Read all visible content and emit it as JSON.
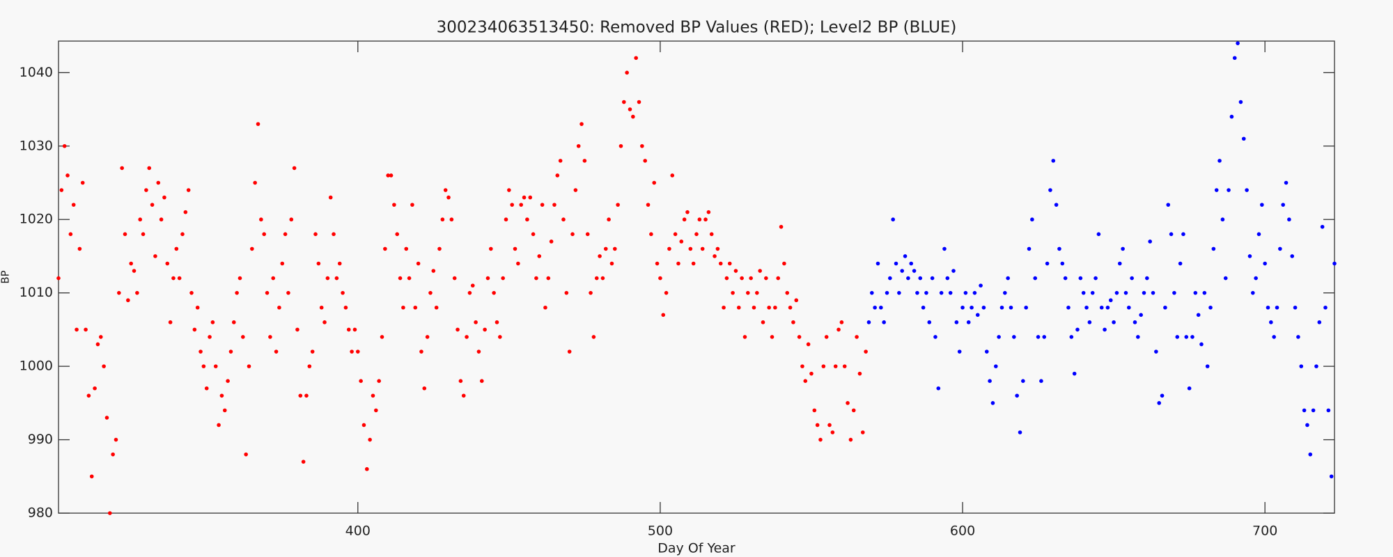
{
  "chart_data": {
    "type": "scatter",
    "title": "300234063513450: Removed BP Values (RED); Level2 BP (BLUE)",
    "xlabel": "Day Of Year",
    "ylabel": "BP",
    "xlim": [
      301,
      723
    ],
    "ylim": [
      980,
      1044.3
    ],
    "xticks": [
      400,
      500,
      600,
      700
    ],
    "yticks": [
      980,
      990,
      1000,
      1010,
      1020,
      1030,
      1040
    ],
    "series": [
      {
        "color": "#ff0000",
        "x": [
          301,
          302,
          303,
          304,
          305,
          306,
          307,
          308,
          309,
          310,
          311,
          312,
          313,
          314,
          315,
          316,
          317,
          318,
          319,
          320,
          321,
          322,
          323,
          324,
          325,
          326,
          327,
          328,
          329,
          330,
          331,
          332,
          333,
          334,
          335,
          336,
          337,
          338,
          339,
          340,
          341,
          342,
          343,
          344,
          345,
          346,
          347,
          348,
          349,
          350,
          351,
          352,
          353,
          354,
          355,
          356,
          357,
          358,
          359,
          360,
          361,
          362,
          363,
          364,
          365,
          366,
          367,
          368,
          369,
          370,
          371,
          372,
          373,
          374,
          375,
          376,
          377,
          378,
          379,
          380,
          381,
          382,
          383,
          384,
          385,
          386,
          387,
          388,
          389,
          390,
          391,
          392,
          393,
          394,
          395,
          396,
          397,
          398,
          399,
          400,
          401,
          402,
          403,
          404,
          405,
          406,
          407,
          408,
          409,
          410,
          411,
          412,
          413,
          414,
          415,
          416,
          417,
          418,
          419,
          420,
          421,
          422,
          423,
          424,
          425,
          426,
          427,
          428,
          429,
          430,
          431,
          432,
          433,
          434,
          435,
          436,
          437,
          438,
          439,
          440,
          441,
          442,
          443,
          444,
          445,
          446,
          447,
          448,
          449,
          450,
          451,
          452,
          453,
          454,
          455,
          456,
          457,
          458,
          459,
          460,
          461,
          462,
          463,
          464,
          465,
          466,
          467,
          468,
          469,
          470,
          471,
          472,
          473,
          474,
          475,
          476,
          477,
          478,
          479,
          480,
          481,
          482,
          483,
          484,
          485,
          486,
          487,
          488,
          489,
          490,
          491,
          492,
          493,
          494,
          495,
          496,
          497,
          498,
          499,
          500,
          501,
          502,
          503,
          504,
          505,
          506,
          507,
          508,
          509,
          510,
          511,
          512,
          513,
          514,
          515,
          516,
          517,
          518,
          519,
          520,
          521,
          522,
          523,
          524,
          525,
          526,
          527,
          528,
          529,
          530,
          531,
          532,
          533,
          534,
          535,
          536,
          537,
          538,
          539,
          540,
          541,
          542,
          543,
          544,
          545,
          546,
          547,
          548,
          549,
          550,
          551,
          552,
          553,
          554,
          555,
          556,
          557,
          558,
          559,
          560,
          561,
          562,
          563,
          564,
          565,
          566,
          567,
          568
        ],
        "values": [
          1012,
          1024,
          1030,
          1026,
          1018,
          1022,
          1005,
          1016,
          1025,
          1005,
          996,
          985,
          997,
          1003,
          1004,
          1000,
          993,
          980,
          988,
          990,
          1010,
          1027,
          1018,
          1009,
          1014,
          1013,
          1010,
          1020,
          1018,
          1024,
          1027,
          1022,
          1015,
          1025,
          1020,
          1023,
          1014,
          1006,
          1012,
          1016,
          1012,
          1018,
          1021,
          1024,
          1010,
          1005,
          1008,
          1002,
          1000,
          997,
          1004,
          1006,
          1000,
          992,
          996,
          994,
          998,
          1002,
          1006,
          1010,
          1012,
          1004,
          988,
          1000,
          1016,
          1025,
          1033,
          1020,
          1018,
          1010,
          1004,
          1012,
          1002,
          1008,
          1014,
          1018,
          1010,
          1020,
          1027,
          1005,
          996,
          987,
          996,
          1000,
          1002,
          1018,
          1014,
          1008,
          1006,
          1012,
          1023,
          1018,
          1012,
          1014,
          1010,
          1008,
          1005,
          1002,
          1005,
          1002,
          998,
          992,
          986,
          990,
          996,
          994,
          998,
          1004,
          1016,
          1026,
          1026,
          1022,
          1018,
          1012,
          1008,
          1016,
          1012,
          1022,
          1008,
          1014,
          1002,
          997,
          1004,
          1010,
          1013,
          1008,
          1016,
          1020,
          1024,
          1023,
          1020,
          1012,
          1005,
          998,
          996,
          1004,
          1010,
          1011,
          1006,
          1002,
          998,
          1005,
          1012,
          1016,
          1010,
          1006,
          1004,
          1012,
          1020,
          1024,
          1022,
          1016,
          1014,
          1022,
          1023,
          1020,
          1023,
          1018,
          1012,
          1015,
          1022,
          1008,
          1012,
          1017,
          1022,
          1026,
          1028,
          1020,
          1010,
          1002,
          1018,
          1024,
          1030,
          1033,
          1028,
          1018,
          1010,
          1004,
          1012,
          1015,
          1012,
          1016,
          1020,
          1014,
          1016,
          1022,
          1030,
          1036,
          1040,
          1035,
          1034,
          1042,
          1036,
          1030,
          1028,
          1022,
          1018,
          1025,
          1014,
          1012,
          1007,
          1010,
          1016,
          1026,
          1018,
          1014,
          1017,
          1020,
          1021,
          1016,
          1014,
          1018,
          1020,
          1016,
          1020,
          1021,
          1018,
          1015,
          1016,
          1014,
          1008,
          1012,
          1014,
          1010,
          1013,
          1008,
          1012,
          1004,
          1010,
          1012,
          1008,
          1010,
          1013,
          1006,
          1012,
          1008,
          1004,
          1008,
          1012,
          1019,
          1014,
          1010,
          1008,
          1006,
          1009,
          1004,
          1000,
          998,
          1003,
          999,
          994,
          992,
          990,
          1000,
          1004,
          992,
          991,
          1000,
          1005,
          1006,
          1000,
          995,
          990,
          994,
          1004,
          999,
          991,
          1002
        ]
      },
      {
        "color": "#0000ff",
        "x": [
          569,
          570,
          571,
          572,
          573,
          574,
          575,
          576,
          577,
          578,
          579,
          580,
          581,
          582,
          583,
          584,
          585,
          586,
          587,
          588,
          589,
          590,
          591,
          592,
          593,
          594,
          595,
          596,
          597,
          598,
          599,
          600,
          601,
          602,
          603,
          604,
          605,
          606,
          607,
          608,
          609,
          610,
          611,
          612,
          613,
          614,
          615,
          616,
          617,
          618,
          619,
          620,
          621,
          622,
          623,
          624,
          625,
          626,
          627,
          628,
          629,
          630,
          631,
          632,
          633,
          634,
          635,
          636,
          637,
          638,
          639,
          640,
          641,
          642,
          643,
          644,
          645,
          646,
          647,
          648,
          649,
          650,
          651,
          652,
          653,
          654,
          655,
          656,
          657,
          658,
          659,
          660,
          661,
          662,
          663,
          664,
          665,
          666,
          667,
          668,
          669,
          670,
          671,
          672,
          673,
          674,
          675,
          676,
          677,
          678,
          679,
          680,
          681,
          682,
          683,
          684,
          685,
          686,
          687,
          688,
          689,
          690,
          691,
          692,
          693,
          694,
          695,
          696,
          697,
          698,
          699,
          700,
          701,
          702,
          703,
          704,
          705,
          706,
          707,
          708,
          709,
          710,
          711,
          712,
          713,
          714,
          715,
          716,
          717,
          718,
          719,
          720,
          721,
          722,
          723
        ],
        "values": [
          1006,
          1010,
          1008,
          1014,
          1008,
          1006,
          1010,
          1012,
          1020,
          1014,
          1010,
          1013,
          1015,
          1012,
          1014,
          1013,
          1010,
          1012,
          1008,
          1010,
          1006,
          1012,
          1004,
          997,
          1010,
          1016,
          1012,
          1010,
          1013,
          1006,
          1002,
          1008,
          1010,
          1006,
          1008,
          1010,
          1007,
          1011,
          1008,
          1002,
          998,
          995,
          1000,
          1004,
          1008,
          1010,
          1012,
          1008,
          1004,
          996,
          991,
          998,
          1008,
          1016,
          1020,
          1012,
          1004,
          998,
          1004,
          1014,
          1024,
          1028,
          1022,
          1016,
          1014,
          1012,
          1008,
          1004,
          999,
          1005,
          1012,
          1010,
          1008,
          1006,
          1010,
          1012,
          1018,
          1008,
          1005,
          1008,
          1009,
          1006,
          1010,
          1014,
          1016,
          1010,
          1008,
          1012,
          1006,
          1004,
          1007,
          1010,
          1012,
          1017,
          1010,
          1002,
          995,
          996,
          1008,
          1022,
          1018,
          1010,
          1004,
          1014,
          1018,
          1004,
          997,
          1004,
          1010,
          1007,
          1003,
          1010,
          1000,
          1008,
          1016,
          1024,
          1028,
          1020,
          1012,
          1024,
          1034,
          1042,
          1044,
          1036,
          1031,
          1024,
          1015,
          1010,
          1012,
          1018,
          1022,
          1014,
          1008,
          1006,
          1004,
          1008,
          1016,
          1022,
          1025,
          1020,
          1015,
          1008,
          1004,
          1000,
          994,
          992,
          988,
          994,
          1000,
          1006,
          1019,
          1008,
          994,
          985,
          1014
        ]
      }
    ]
  }
}
